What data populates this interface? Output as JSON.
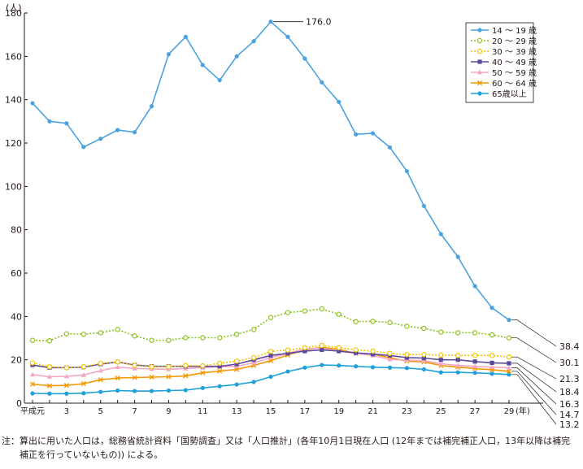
{
  "chart_data": {
    "type": "line",
    "unit_label": "(人)",
    "x_unit_label": "(年)",
    "x": [
      "平成元",
      "2",
      "3",
      "4",
      "5",
      "6",
      "7",
      "8",
      "9",
      "10",
      "11",
      "12",
      "13",
      "14",
      "15",
      "16",
      "17",
      "18",
      "19",
      "20",
      "21",
      "22",
      "23",
      "24",
      "25",
      "26",
      "27",
      "28",
      "29"
    ],
    "x_tick_labels": [
      "平成元",
      "3",
      "5",
      "7",
      "9",
      "11",
      "13",
      "15",
      "17",
      "19",
      "21",
      "23",
      "25",
      "27",
      "29"
    ],
    "ylim": [
      0,
      180
    ],
    "y_ticks": [
      0,
      20,
      40,
      60,
      80,
      100,
      120,
      140,
      160,
      180
    ],
    "grid": false,
    "legend_position": "top-right",
    "series": [
      {
        "name": "14 ～ 19 歳",
        "color": "#4aa3df",
        "marker": "circle",
        "dash": "",
        "values": [
          138.4,
          130.0,
          129.1,
          118.2,
          122.0,
          126.0,
          125.0,
          137.0,
          161.0,
          169.0,
          156.0,
          149.0,
          160.0,
          167.0,
          176.0,
          169.0,
          159.0,
          148.0,
          139.0,
          124.0,
          124.5,
          118.0,
          107.0,
          91.0,
          78.0,
          67.5,
          54.0,
          44.0,
          38.4
        ]
      },
      {
        "name": "20 ～ 29 歳",
        "color": "#8dc21f",
        "marker": "circle-open",
        "dash": "2,2",
        "values": [
          29.0,
          28.8,
          32.0,
          31.8,
          32.5,
          34.0,
          31.0,
          29.0,
          29.0,
          30.2,
          30.2,
          30.2,
          31.8,
          34.0,
          39.5,
          41.8,
          42.5,
          43.5,
          41.0,
          37.6,
          37.8,
          37.2,
          35.5,
          34.5,
          32.8,
          32.5,
          32.5,
          31.5,
          30.1
        ]
      },
      {
        "name": "30 ～ 39 歳",
        "color": "#f4c400",
        "marker": "circle-open",
        "dash": "2,2",
        "values": [
          18.6,
          16.8,
          16.3,
          16.8,
          18.4,
          19.0,
          17.4,
          16.8,
          16.8,
          17.4,
          17.2,
          18.4,
          19.4,
          21.0,
          23.9,
          24.5,
          25.6,
          26.6,
          25.6,
          24.6,
          24.0,
          23.0,
          22.4,
          22.4,
          22.2,
          22.0,
          22.0,
          22.0,
          21.3
        ]
      },
      {
        "name": "40 ～ 49 歳",
        "color": "#5b4a9a",
        "marker": "square",
        "dash": "",
        "values": [
          17.6,
          16.4,
          16.4,
          16.6,
          18.0,
          19.0,
          17.6,
          17.0,
          17.0,
          17.0,
          17.0,
          17.0,
          18.0,
          20.0,
          22.0,
          23.0,
          24.0,
          24.6,
          24.0,
          23.2,
          22.6,
          22.0,
          21.0,
          20.8,
          20.0,
          20.0,
          19.2,
          18.6,
          18.4
        ]
      },
      {
        "name": "50 ～ 59 歳",
        "color": "#f3a7c3",
        "marker": "triangle",
        "dash": "",
        "values": [
          13.2,
          12.2,
          12.4,
          13.0,
          15.0,
          16.6,
          16.0,
          15.8,
          15.6,
          16.0,
          16.4,
          16.8,
          17.0,
          18.6,
          21.0,
          23.0,
          25.0,
          25.4,
          24.0,
          23.0,
          22.0,
          20.2,
          19.8,
          19.6,
          18.2,
          17.4,
          17.0,
          16.6,
          16.3
        ]
      },
      {
        "name": "60 ～ 64 歳",
        "color": "#f39800",
        "marker": "cross",
        "dash": "",
        "values": [
          8.8,
          8.0,
          8.2,
          9.0,
          10.8,
          11.6,
          11.8,
          12.0,
          12.2,
          12.6,
          14.0,
          14.8,
          15.6,
          17.4,
          19.6,
          22.2,
          24.6,
          25.8,
          24.8,
          23.0,
          22.6,
          21.0,
          19.4,
          19.0,
          17.4,
          16.6,
          16.0,
          15.4,
          14.7
        ]
      },
      {
        "name": "65歳以上",
        "color": "#1ea1db",
        "marker": "circle",
        "dash": "",
        "values": [
          4.5,
          4.4,
          4.4,
          4.6,
          5.2,
          5.8,
          5.6,
          5.6,
          5.8,
          6.0,
          7.0,
          7.8,
          8.6,
          9.8,
          12.2,
          14.6,
          16.4,
          17.6,
          17.4,
          17.0,
          16.6,
          16.4,
          16.2,
          15.6,
          14.2,
          14.2,
          14.0,
          13.6,
          13.2
        ]
      }
    ],
    "annotations": [
      {
        "series": 0,
        "index": 14,
        "text": "176.0"
      }
    ],
    "end_labels": [
      "38.4",
      "30.1",
      "21.3",
      "18.4",
      "16.3",
      "14.7",
      "13.2"
    ]
  },
  "note": {
    "line1": "注：算出に用いた人口は，総務省統計資料「国勢調査」又は「人口推計」(各年10月1日現在人口 (12年までは補完補正人口，13年以降は補完",
    "line2": "補正を行っていないもの)) による。"
  }
}
